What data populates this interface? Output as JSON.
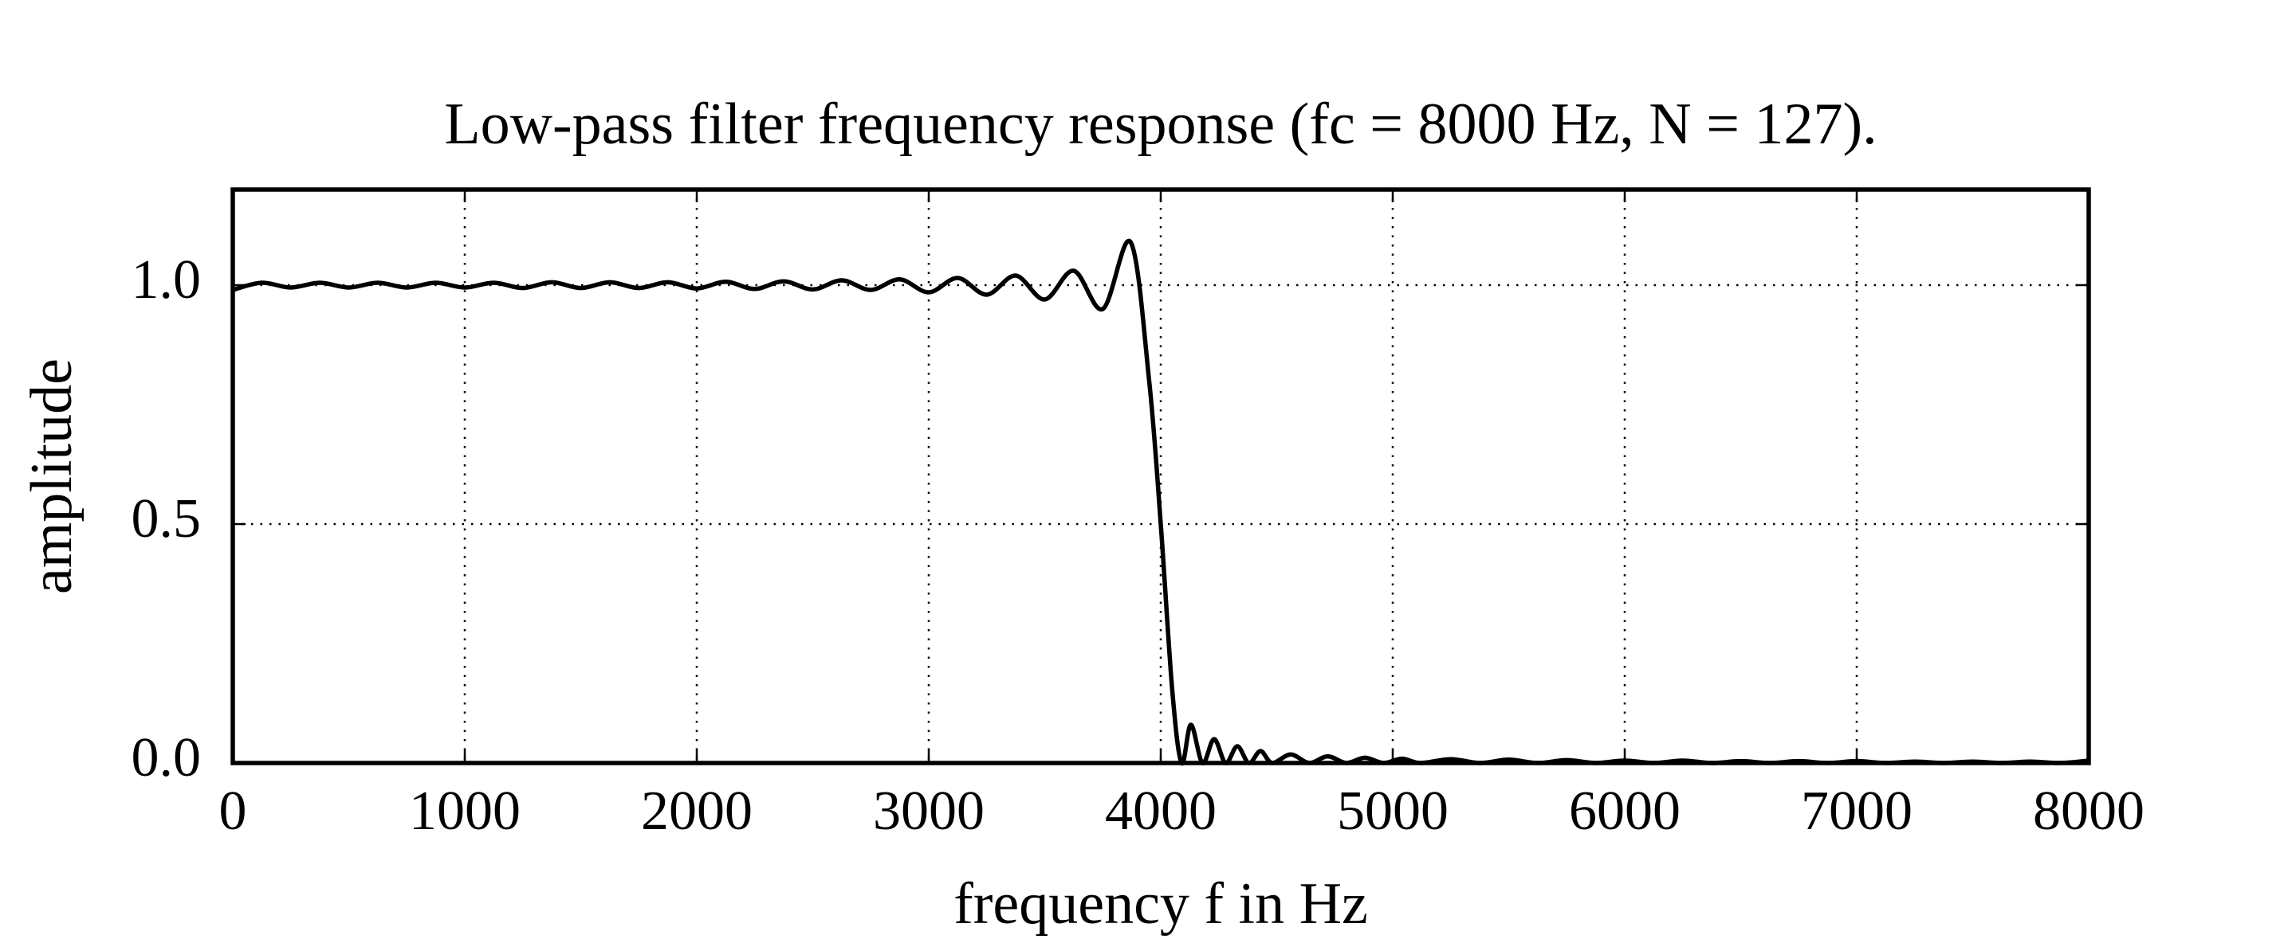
{
  "chart_data": {
    "type": "line",
    "title": "Low-pass filter frequency response (fc = 8000 Hz, N = 127).",
    "x_label": "frequency f in Hz",
    "y_label": "amplitude",
    "xlim": [
      0,
      8000
    ],
    "xticks": [
      0,
      1000,
      2000,
      3000,
      4000,
      5000,
      6000,
      7000,
      8000
    ],
    "ylim": [
      0,
      1.2
    ],
    "yticks": [
      {
        "value": 0,
        "label": "0.0"
      },
      {
        "value": 0.5,
        "label": "0.5"
      },
      {
        "value": 1,
        "label": "1.0"
      }
    ],
    "grid": true,
    "color": "#000000",
    "x": [
      0,
      125,
      250,
      375,
      500,
      625,
      750,
      875,
      1000,
      1125,
      1250,
      1375,
      1500,
      1625,
      1750,
      1875,
      2000,
      2125,
      2250,
      2375,
      2500,
      2625,
      2750,
      2875,
      3000,
      3125,
      3250,
      3375,
      3500,
      3625,
      3750,
      3870,
      3950,
      4000,
      4050,
      4090,
      4130,
      4180,
      4230,
      4280,
      4330,
      4380,
      4430,
      4480,
      4560,
      4640,
      4720,
      4800,
      4880,
      4960,
      5040,
      5120,
      5250,
      5375,
      5500,
      5625,
      5750,
      5875,
      6000,
      6125,
      6250,
      6375,
      6500,
      6625,
      6750,
      6875,
      7000,
      7125,
      7250,
      7375,
      7500,
      7625,
      7750,
      7875,
      8000
    ],
    "values": [
      0.99,
      1.005,
      0.995,
      1.005,
      0.995,
      1.005,
      0.995,
      1.005,
      0.995,
      1.005,
      0.994,
      1.006,
      0.994,
      1.006,
      0.994,
      1.006,
      0.993,
      1.007,
      0.992,
      1.008,
      0.991,
      1.01,
      0.99,
      1.012,
      0.985,
      1.015,
      0.98,
      1.02,
      0.97,
      1.03,
      0.95,
      1.09,
      0.8,
      0.5,
      0.15,
      0,
      0.08,
      0,
      0.05,
      0,
      0.035,
      0,
      0.025,
      0,
      0.018,
      0,
      0.014,
      0,
      0.011,
      0,
      0.009,
      0,
      0.008,
      0,
      0.007,
      0,
      0.006,
      0,
      0.005,
      0,
      0.005,
      0,
      0.004,
      0,
      0.004,
      0,
      0.004,
      0,
      0.003,
      0,
      0.003,
      0,
      0.003,
      0,
      0.005
    ]
  }
}
